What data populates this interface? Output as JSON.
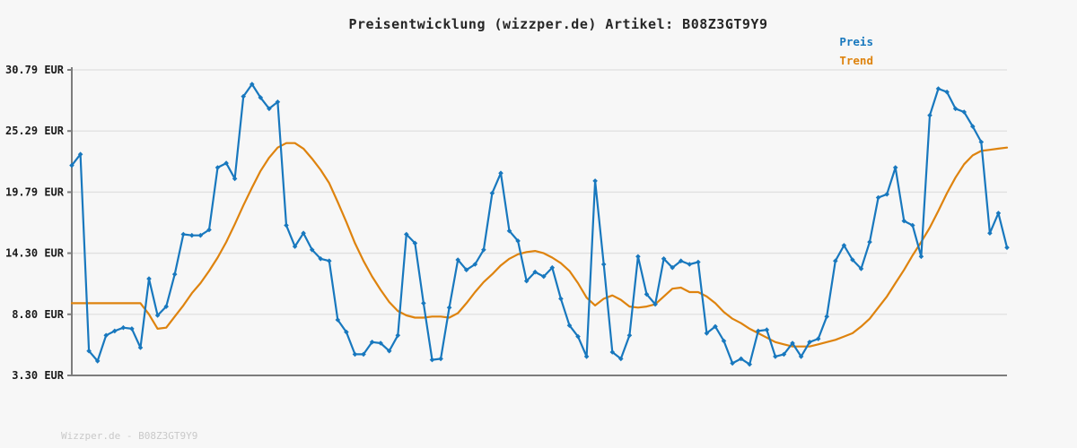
{
  "header": {
    "title": "Preisentwicklung (wizzper.de) Artikel: B08Z3GT9Y9"
  },
  "legend": [
    {
      "label": "Preis",
      "color": "#1878be"
    },
    {
      "label": "Trend",
      "color": "#de830e"
    }
  ],
  "footer": {
    "watermark": "Wizzper.de - B08Z3GT9Y9"
  },
  "colors": {
    "background": "#f7f7f7",
    "grid": "#e0e0e0",
    "axis": "#7d7d7d",
    "title": "#262626",
    "tick_label": "#1a1a1a",
    "watermark": "#c9c9c9",
    "price": "#1878be",
    "trend": "#de830e"
  },
  "chart_data": {
    "type": "line",
    "title": "Preisentwicklung (wizzper.de) Artikel: B08Z3GT9Y9",
    "xlabel": "",
    "ylabel": "EUR",
    "ylim": [
      3.3,
      30.79
    ],
    "grid": true,
    "legend_position": "top-right",
    "x_axis_labels_visible": false,
    "y_ticks": [
      {
        "label": "30.79 EUR",
        "value": 30.79
      },
      {
        "label": "25.29 EUR",
        "value": 25.29
      },
      {
        "label": "19.79 EUR",
        "value": 19.79
      },
      {
        "label": "14.30 EUR",
        "value": 14.3
      },
      {
        "label": "8.80 EUR",
        "value": 8.8
      },
      {
        "label": "3.30 EUR",
        "value": 3.3
      }
    ],
    "series": [
      {
        "name": "Preis",
        "color": "#1878be",
        "markers": true,
        "values": [
          22.2,
          23.2,
          5.5,
          4.6,
          6.9,
          7.3,
          7.6,
          7.5,
          5.8,
          12.0,
          8.7,
          9.5,
          12.4,
          16.0,
          15.9,
          15.9,
          16.4,
          22.0,
          22.4,
          21.0,
          28.4,
          29.5,
          28.3,
          27.3,
          27.9,
          16.8,
          14.9,
          16.1,
          14.6,
          13.8,
          13.6,
          8.3,
          7.2,
          5.2,
          5.2,
          6.3,
          6.2,
          5.5,
          6.9,
          16.0,
          15.2,
          9.8,
          4.7,
          4.8,
          9.4,
          13.7,
          12.8,
          13.3,
          14.6,
          19.7,
          21.5,
          16.3,
          15.4,
          11.8,
          12.6,
          12.2,
          13.0,
          10.2,
          7.8,
          6.8,
          5.0,
          20.8,
          13.3,
          5.4,
          4.8,
          6.9,
          14.0,
          10.6,
          9.7,
          13.8,
          13.0,
          13.6,
          13.3,
          13.5,
          7.1,
          7.7,
          6.4,
          4.4,
          4.8,
          4.3,
          7.3,
          7.4,
          5.0,
          5.2,
          6.2,
          5.0,
          6.3,
          6.6,
          8.6,
          13.6,
          15.0,
          13.7,
          12.9,
          15.3,
          19.3,
          19.6,
          22.0,
          17.2,
          16.8,
          14.0,
          26.7,
          29.1,
          28.8,
          27.3,
          27.0,
          25.7,
          24.3,
          16.1,
          17.9,
          14.8
        ]
      },
      {
        "name": "Trend",
        "color": "#de830e",
        "markers": false,
        "values": [
          9.8,
          9.8,
          9.8,
          9.8,
          9.8,
          9.8,
          9.8,
          9.8,
          9.8,
          8.8,
          7.5,
          7.6,
          8.6,
          9.6,
          10.7,
          11.6,
          12.7,
          13.9,
          15.3,
          16.9,
          18.6,
          20.2,
          21.7,
          22.9,
          23.8,
          24.2,
          24.2,
          23.7,
          22.8,
          21.8,
          20.6,
          18.9,
          17.1,
          15.2,
          13.6,
          12.2,
          11.0,
          9.9,
          9.1,
          8.7,
          8.5,
          8.5,
          8.6,
          8.6,
          8.5,
          8.9,
          9.8,
          10.8,
          11.7,
          12.4,
          13.2,
          13.8,
          14.2,
          14.4,
          14.5,
          14.3,
          13.9,
          13.4,
          12.7,
          11.6,
          10.3,
          9.6,
          10.2,
          10.5,
          10.1,
          9.5,
          9.4,
          9.5,
          9.7,
          10.4,
          11.1,
          11.2,
          10.8,
          10.8,
          10.4,
          9.8,
          9.0,
          8.4,
          8.0,
          7.5,
          7.1,
          6.7,
          6.3,
          6.1,
          5.9,
          5.9,
          5.9,
          6.1,
          6.3,
          6.5,
          6.8,
          7.1,
          7.7,
          8.4,
          9.4,
          10.4,
          11.6,
          12.8,
          14.1,
          15.3,
          16.6,
          18.1,
          19.7,
          21.1,
          22.3,
          23.1,
          23.5,
          23.6,
          23.7,
          23.8
        ]
      }
    ]
  }
}
